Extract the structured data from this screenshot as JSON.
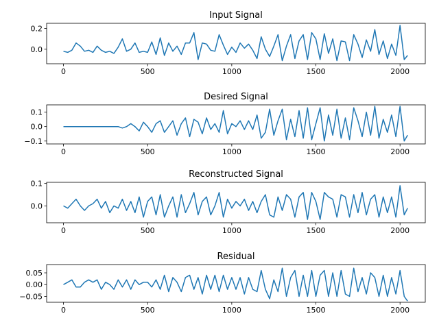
{
  "chart_data": [
    {
      "type": "line",
      "title": "Input Signal",
      "xlabel": "",
      "ylabel": "",
      "xlim": [
        -100,
        2150
      ],
      "ylim": [
        -0.14,
        0.25
      ],
      "xticks": [
        0,
        500,
        1000,
        1500,
        2000
      ],
      "xtick_labels": [
        "0",
        "500",
        "1000",
        "1500",
        "2000"
      ],
      "yticks": [
        0.0,
        0.2
      ],
      "ytick_labels": [
        "0.0",
        "0.2"
      ],
      "grid": false,
      "color": "#1f77b4",
      "series": [
        {
          "x": [
            0,
            25,
            50,
            75,
            100,
            125,
            150,
            175,
            200,
            225,
            250,
            275,
            300,
            325,
            350,
            375,
            400,
            425,
            450,
            475,
            500,
            525,
            550,
            575,
            600,
            625,
            650,
            675,
            700,
            725,
            750,
            775,
            800,
            825,
            850,
            875,
            900,
            925,
            950,
            975,
            1000,
            1025,
            1050,
            1075,
            1100,
            1125,
            1150,
            1175,
            1200,
            1225,
            1250,
            1275,
            1300,
            1325,
            1350,
            1375,
            1400,
            1425,
            1450,
            1475,
            1500,
            1525,
            1550,
            1575,
            1600,
            1625,
            1650,
            1675,
            1700,
            1725,
            1750,
            1775,
            1800,
            1825,
            1850,
            1875,
            1900,
            1925,
            1950,
            1975,
            2000,
            2025,
            2045
          ],
          "y": [
            -0.02,
            -0.03,
            -0.01,
            0.06,
            0.03,
            -0.02,
            -0.01,
            -0.03,
            0.03,
            -0.01,
            -0.03,
            -0.02,
            -0.04,
            0.02,
            0.1,
            -0.02,
            0.0,
            0.06,
            -0.03,
            -0.02,
            -0.03,
            0.07,
            -0.05,
            0.11,
            -0.06,
            0.06,
            -0.02,
            0.03,
            -0.05,
            0.06,
            0.06,
            0.16,
            -0.1,
            0.06,
            0.05,
            -0.01,
            -0.02,
            0.14,
            0.04,
            -0.05,
            0.02,
            -0.03,
            0.06,
            0.01,
            0.05,
            -0.01,
            -0.09,
            0.12,
            0.0,
            -0.07,
            0.03,
            0.14,
            -0.11,
            0.03,
            0.14,
            -0.09,
            0.08,
            0.14,
            -0.1,
            0.16,
            0.1,
            -0.1,
            0.15,
            -0.04,
            0.1,
            -0.11,
            0.08,
            0.07,
            -0.11,
            0.14,
            0.05,
            -0.08,
            0.09,
            -0.02,
            0.19,
            -0.05,
            0.08,
            -0.09,
            0.05,
            -0.06,
            0.23,
            -0.1,
            -0.06
          ]
        }
      ]
    },
    {
      "type": "line",
      "title": "Desired Signal",
      "xlabel": "",
      "ylabel": "",
      "xlim": [
        -100,
        2150
      ],
      "ylim": [
        -0.12,
        0.15
      ],
      "xticks": [
        0,
        500,
        1000,
        1500,
        2000
      ],
      "xtick_labels": [
        "0",
        "500",
        "1000",
        "1500",
        "2000"
      ],
      "yticks": [
        -0.1,
        0.0,
        0.1
      ],
      "ytick_labels": [
        "−0.1",
        "0.0",
        "0.1"
      ],
      "grid": false,
      "color": "#1f77b4",
      "series": [
        {
          "x": [
            0,
            50,
            100,
            150,
            200,
            250,
            300,
            325,
            350,
            375,
            400,
            425,
            450,
            475,
            500,
            525,
            550,
            575,
            600,
            625,
            650,
            675,
            700,
            725,
            750,
            775,
            800,
            825,
            850,
            875,
            900,
            925,
            950,
            975,
            1000,
            1025,
            1050,
            1075,
            1100,
            1125,
            1150,
            1175,
            1200,
            1225,
            1250,
            1275,
            1300,
            1325,
            1350,
            1375,
            1400,
            1425,
            1450,
            1475,
            1500,
            1525,
            1550,
            1575,
            1600,
            1625,
            1650,
            1675,
            1700,
            1725,
            1750,
            1775,
            1800,
            1825,
            1850,
            1875,
            1900,
            1925,
            1950,
            1975,
            2000,
            2025,
            2045
          ],
          "y": [
            0.0,
            0.0,
            0.0,
            0.0,
            0.0,
            0.0,
            0.0,
            0.0,
            -0.01,
            0.0,
            0.02,
            0.0,
            -0.03,
            0.03,
            0.0,
            -0.04,
            0.02,
            0.04,
            -0.04,
            0.0,
            0.04,
            -0.06,
            0.02,
            0.06,
            -0.07,
            0.05,
            0.03,
            -0.05,
            0.06,
            -0.02,
            0.02,
            -0.04,
            0.11,
            -0.05,
            0.02,
            0.0,
            0.04,
            -0.02,
            0.04,
            -0.02,
            0.08,
            -0.08,
            -0.04,
            0.12,
            -0.06,
            0.04,
            0.12,
            -0.09,
            0.05,
            -0.07,
            0.11,
            -0.08,
            0.13,
            -0.09,
            0.02,
            0.13,
            -0.1,
            0.08,
            -0.06,
            0.12,
            -0.08,
            0.06,
            -0.09,
            0.13,
            0.04,
            -0.07,
            0.1,
            -0.06,
            0.14,
            -0.08,
            0.05,
            -0.04,
            0.08,
            -0.07,
            0.14,
            -0.1,
            -0.06
          ]
        }
      ]
    },
    {
      "type": "line",
      "title": "Reconstructed Signal",
      "xlabel": "",
      "ylabel": "",
      "xlim": [
        -100,
        2150
      ],
      "ylim": [
        -0.075,
        0.105
      ],
      "xticks": [
        0,
        500,
        1000,
        1500,
        2000
      ],
      "xtick_labels": [
        "0",
        "500",
        "1000",
        "1500",
        "2000"
      ],
      "yticks": [
        0.0,
        0.1
      ],
      "ytick_labels": [
        "0.0",
        "0.1"
      ],
      "grid": false,
      "color": "#1f77b4",
      "series": [
        {
          "x": [
            0,
            25,
            50,
            75,
            100,
            125,
            150,
            175,
            200,
            225,
            250,
            275,
            300,
            325,
            350,
            375,
            400,
            425,
            450,
            475,
            500,
            525,
            550,
            575,
            600,
            625,
            650,
            675,
            700,
            725,
            750,
            775,
            800,
            825,
            850,
            875,
            900,
            925,
            950,
            975,
            1000,
            1025,
            1050,
            1075,
            1100,
            1125,
            1150,
            1175,
            1200,
            1225,
            1250,
            1275,
            1300,
            1325,
            1350,
            1375,
            1400,
            1425,
            1450,
            1475,
            1500,
            1525,
            1550,
            1575,
            1600,
            1625,
            1650,
            1675,
            1700,
            1725,
            1750,
            1775,
            1800,
            1825,
            1850,
            1875,
            1900,
            1925,
            1950,
            1975,
            2000,
            2025,
            2045
          ],
          "y": [
            0.0,
            -0.01,
            0.01,
            0.03,
            0.0,
            -0.02,
            0.0,
            0.01,
            0.03,
            -0.01,
            0.02,
            -0.03,
            0.0,
            -0.01,
            0.03,
            -0.02,
            0.02,
            -0.03,
            0.04,
            -0.05,
            0.02,
            0.04,
            -0.04,
            0.05,
            -0.05,
            0.0,
            0.04,
            -0.05,
            0.05,
            -0.03,
            0.01,
            0.06,
            -0.04,
            0.02,
            0.04,
            -0.04,
            0.0,
            0.06,
            -0.05,
            0.03,
            -0.01,
            0.02,
            0.0,
            0.03,
            -0.02,
            0.02,
            -0.03,
            0.02,
            0.05,
            -0.04,
            -0.05,
            0.04,
            -0.02,
            0.05,
            0.03,
            -0.05,
            0.04,
            0.06,
            -0.06,
            0.06,
            0.02,
            -0.06,
            0.06,
            0.04,
            0.03,
            -0.05,
            0.05,
            0.04,
            -0.05,
            0.05,
            -0.03,
            0.06,
            -0.04,
            0.03,
            0.05,
            -0.05,
            0.04,
            -0.03,
            0.04,
            -0.05,
            0.09,
            -0.04,
            -0.01
          ]
        }
      ]
    },
    {
      "type": "line",
      "title": "Residual",
      "xlabel": "",
      "ylabel": "",
      "xlim": [
        -100,
        2150
      ],
      "ylim": [
        -0.075,
        0.085
      ],
      "xticks": [
        0,
        500,
        1000,
        1500,
        2000
      ],
      "xtick_labels": [
        "0",
        "500",
        "1000",
        "1500",
        "2000"
      ],
      "yticks": [
        -0.05,
        0.0,
        0.05
      ],
      "ytick_labels": [
        "−0.05",
        "0.00",
        "0.05"
      ],
      "grid": false,
      "color": "#1f77b4",
      "series": [
        {
          "x": [
            0,
            25,
            50,
            75,
            100,
            125,
            150,
            175,
            200,
            225,
            250,
            275,
            300,
            325,
            350,
            375,
            400,
            425,
            450,
            475,
            500,
            525,
            550,
            575,
            600,
            625,
            650,
            675,
            700,
            725,
            750,
            775,
            800,
            825,
            850,
            875,
            900,
            925,
            950,
            975,
            1000,
            1025,
            1050,
            1075,
            1100,
            1125,
            1150,
            1175,
            1200,
            1225,
            1250,
            1275,
            1300,
            1325,
            1350,
            1375,
            1400,
            1425,
            1450,
            1475,
            1500,
            1525,
            1550,
            1575,
            1600,
            1625,
            1650,
            1675,
            1700,
            1725,
            1750,
            1775,
            1800,
            1825,
            1850,
            1875,
            1900,
            1925,
            1950,
            1975,
            2000,
            2025,
            2045
          ],
          "y": [
            0.0,
            0.01,
            0.02,
            -0.01,
            -0.01,
            0.01,
            0.02,
            0.01,
            0.02,
            -0.02,
            0.01,
            0.0,
            -0.02,
            0.02,
            -0.01,
            0.02,
            -0.02,
            0.02,
            0.0,
            0.01,
            0.01,
            -0.01,
            0.02,
            -0.02,
            0.04,
            -0.03,
            0.03,
            0.01,
            -0.03,
            0.03,
            0.04,
            -0.02,
            0.03,
            -0.04,
            0.04,
            -0.02,
            0.04,
            -0.03,
            0.04,
            -0.02,
            0.03,
            -0.02,
            0.03,
            -0.04,
            0.03,
            -0.02,
            -0.03,
            0.06,
            -0.02,
            -0.06,
            0.02,
            -0.03,
            0.07,
            -0.05,
            0.03,
            0.06,
            -0.05,
            0.04,
            -0.05,
            0.06,
            -0.05,
            0.04,
            0.06,
            -0.05,
            0.05,
            -0.05,
            0.06,
            -0.04,
            -0.05,
            0.07,
            -0.03,
            0.03,
            -0.04,
            0.05,
            0.03,
            -0.05,
            0.04,
            -0.05,
            0.03,
            -0.04,
            0.06,
            -0.05,
            -0.07
          ]
        }
      ]
    }
  ]
}
